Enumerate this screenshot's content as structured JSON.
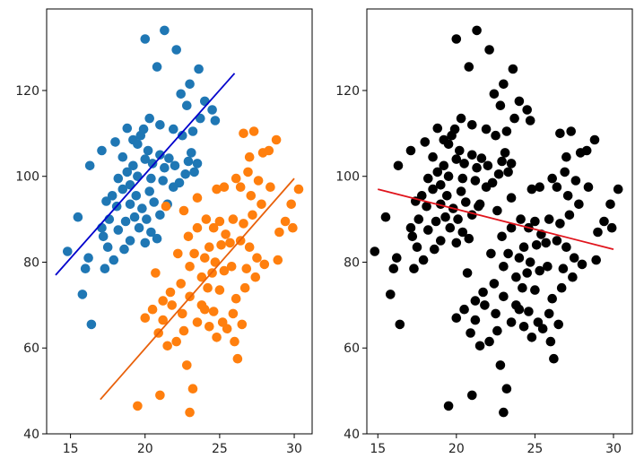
{
  "chart_data": [
    {
      "type": "scatter",
      "title": "",
      "xlabel": "",
      "ylabel": "",
      "xlim": [
        13.4,
        31.2
      ],
      "ylim": [
        40,
        139
      ],
      "xticks": [
        15,
        20,
        25,
        30
      ],
      "yticks": [
        40,
        60,
        80,
        100,
        120
      ],
      "grid": false,
      "series": [
        {
          "color": "#1f77b4",
          "marker": "circle",
          "points": [
            [
              20.0,
              132.0
            ],
            [
              21.3,
              134.0
            ],
            [
              22.1,
              129.5
            ],
            [
              20.8,
              125.5
            ],
            [
              23.6,
              125.0
            ],
            [
              22.4,
              119.2
            ],
            [
              23.0,
              121.5
            ],
            [
              24.0,
              117.5
            ],
            [
              24.5,
              115.5
            ],
            [
              22.8,
              116.5
            ],
            [
              21.9,
              111.0
            ],
            [
              20.3,
              113.5
            ],
            [
              21.0,
              112.0
            ],
            [
              19.9,
              111.0
            ],
            [
              18.8,
              111.2
            ],
            [
              19.2,
              108.5
            ],
            [
              18.0,
              108.0
            ],
            [
              17.1,
              106.0
            ],
            [
              18.5,
              104.5
            ],
            [
              19.5,
              107.5
            ],
            [
              20.2,
              106.0
            ],
            [
              20.0,
              104.0
            ],
            [
              20.5,
              103.0
            ],
            [
              21.0,
              105.0
            ],
            [
              21.6,
              104.2
            ],
            [
              22.5,
              109.5
            ],
            [
              23.1,
              105.5
            ],
            [
              22.7,
              100.5
            ],
            [
              22.3,
              98.5
            ],
            [
              21.9,
              97.5
            ],
            [
              21.2,
              99.0
            ],
            [
              20.4,
              99.5
            ],
            [
              19.5,
              100.0
            ],
            [
              19.0,
              98.0
            ],
            [
              18.5,
              97.0
            ],
            [
              18.2,
              99.5
            ],
            [
              17.8,
              95.5
            ],
            [
              17.4,
              94.2
            ],
            [
              18.1,
              93.0
            ],
            [
              19.0,
              93.5
            ],
            [
              19.8,
              92.5
            ],
            [
              20.6,
              94.0
            ],
            [
              21.5,
              93.5
            ],
            [
              21.0,
              91.0
            ],
            [
              20.1,
              90.0
            ],
            [
              19.3,
              90.5
            ],
            [
              18.7,
              89.5
            ],
            [
              17.6,
              90.0
            ],
            [
              17.1,
              88.0
            ],
            [
              18.2,
              87.5
            ],
            [
              19.6,
              88.0
            ],
            [
              20.4,
              87.0
            ],
            [
              19.0,
              85.0
            ],
            [
              20.0,
              84.5
            ],
            [
              20.8,
              85.5
            ],
            [
              17.2,
              86.0
            ],
            [
              17.5,
              83.5
            ],
            [
              18.6,
              83.0
            ],
            [
              17.9,
              80.5
            ],
            [
              16.2,
              81.0
            ],
            [
              17.3,
              78.5
            ],
            [
              16.0,
              78.5
            ],
            [
              15.8,
              72.5
            ],
            [
              16.4,
              65.5
            ],
            [
              14.8,
              82.5
            ],
            [
              15.5,
              90.5
            ],
            [
              16.3,
              102.5
            ],
            [
              22.9,
              103.5
            ],
            [
              23.5,
              103.0
            ],
            [
              23.3,
              101.0
            ],
            [
              22.0,
              102.5
            ],
            [
              24.7,
              113.0
            ],
            [
              23.7,
              113.5
            ],
            [
              23.2,
              110.5
            ],
            [
              19.2,
              102.5
            ],
            [
              19.7,
              109.5
            ],
            [
              20.3,
              96.5
            ],
            [
              21.3,
              102.0
            ],
            [
              18.8,
              101.0
            ],
            [
              19.4,
              95.5
            ]
          ],
          "fit_line": {
            "x": [
              14.0,
              26.0
            ],
            "y": [
              77.0,
              124.0
            ],
            "color": "#0000cc"
          }
        },
        {
          "color": "#ff7f0e",
          "marker": "circle",
          "points": [
            [
              23.0,
              45.0
            ],
            [
              19.5,
              46.5
            ],
            [
              21.0,
              49.0
            ],
            [
              23.2,
              50.5
            ],
            [
              22.8,
              56.0
            ],
            [
              21.5,
              60.5
            ],
            [
              22.1,
              61.5
            ],
            [
              20.0,
              67.0
            ],
            [
              21.2,
              66.5
            ],
            [
              21.8,
              70.0
            ],
            [
              22.5,
              68.0
            ],
            [
              23.0,
              72.0
            ],
            [
              23.5,
              66.0
            ],
            [
              24.0,
              69.0
            ],
            [
              24.6,
              68.5
            ],
            [
              25.2,
              66.0
            ],
            [
              24.8,
              62.5
            ],
            [
              26.0,
              61.5
            ],
            [
              26.2,
              57.5
            ],
            [
              25.5,
              64.5
            ],
            [
              26.5,
              65.5
            ],
            [
              26.1,
              71.5
            ],
            [
              25.0,
              73.5
            ],
            [
              24.2,
              74.0
            ],
            [
              23.8,
              76.5
            ],
            [
              24.5,
              77.5
            ],
            [
              25.3,
              78.0
            ],
            [
              25.8,
              79.0
            ],
            [
              24.7,
              80.0
            ],
            [
              24.0,
              81.0
            ],
            [
              23.3,
              82.0
            ],
            [
              24.3,
              83.5
            ],
            [
              25.1,
              84.0
            ],
            [
              25.7,
              84.5
            ],
            [
              26.4,
              85.0
            ],
            [
              27.0,
              83.5
            ],
            [
              27.5,
              81.0
            ],
            [
              28.0,
              79.5
            ],
            [
              28.9,
              80.5
            ],
            [
              26.8,
              78.5
            ],
            [
              25.4,
              86.5
            ],
            [
              24.6,
              88.0
            ],
            [
              25.0,
              89.5
            ],
            [
              25.9,
              90.0
            ],
            [
              26.6,
              89.0
            ],
            [
              27.2,
              91.0
            ],
            [
              24.1,
              90.0
            ],
            [
              23.5,
              88.0
            ],
            [
              22.9,
              86.0
            ],
            [
              22.2,
              82.0
            ],
            [
              23.0,
              79.0
            ],
            [
              22.4,
              75.0
            ],
            [
              21.7,
              73.0
            ],
            [
              21.2,
              71.0
            ],
            [
              20.5,
              69.0
            ],
            [
              20.9,
              63.5
            ],
            [
              22.6,
              64.0
            ],
            [
              27.8,
              93.5
            ],
            [
              27.1,
              95.5
            ],
            [
              26.4,
              97.5
            ],
            [
              27.6,
              99.0
            ],
            [
              28.4,
              97.5
            ],
            [
              26.9,
              101.0
            ],
            [
              27.9,
              105.5
            ],
            [
              28.3,
              106.0
            ],
            [
              28.8,
              108.5
            ],
            [
              26.6,
              110.0
            ],
            [
              27.3,
              110.5
            ],
            [
              27.0,
              104.5
            ],
            [
              26.1,
              99.5
            ],
            [
              25.3,
              97.5
            ],
            [
              24.8,
              97.0
            ],
            [
              23.5,
              95.0
            ],
            [
              22.6,
              92.0
            ],
            [
              21.4,
              93.0
            ],
            [
              29.8,
              93.5
            ],
            [
              30.3,
              97.0
            ],
            [
              29.4,
              89.5
            ],
            [
              29.0,
              87.0
            ],
            [
              29.9,
              88.0
            ],
            [
              20.7,
              77.5
            ],
            [
              23.8,
              70.0
            ],
            [
              24.3,
              65.0
            ],
            [
              25.9,
              68.0
            ],
            [
              26.7,
              74.0
            ],
            [
              27.4,
              76.5
            ]
          ],
          "fit_line": {
            "x": [
              17.0,
              30.0
            ],
            "y": [
              48.0,
              99.5
            ],
            "color": "#e8600a"
          }
        }
      ]
    },
    {
      "type": "scatter",
      "title": "",
      "xlabel": "",
      "ylabel": "",
      "xlim": [
        14.3,
        31.2
      ],
      "ylim": [
        40,
        139
      ],
      "xticks": [
        15,
        20,
        25,
        30
      ],
      "yticks": [
        40,
        60,
        80,
        100,
        120
      ],
      "grid": false,
      "series": [
        {
          "color": "#000000",
          "marker": "circle",
          "combines_left_panel_series": true
        }
      ],
      "fit_line": {
        "x": [
          15.0,
          30.0
        ],
        "y": [
          97.0,
          83.0
        ],
        "color": "#e0141c"
      }
    }
  ]
}
